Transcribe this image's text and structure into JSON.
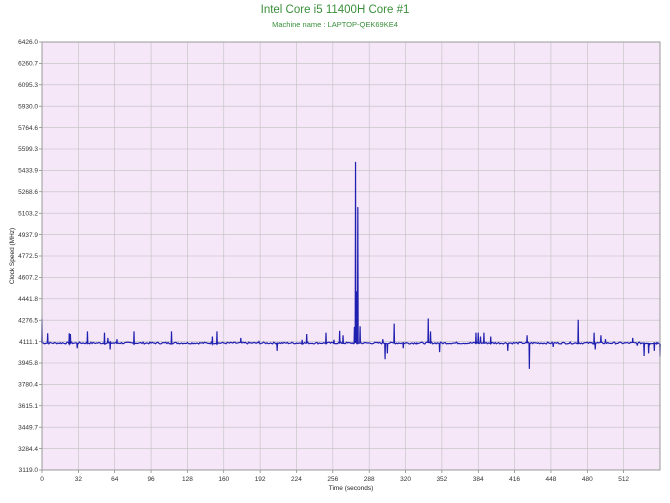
{
  "chart_data": {
    "type": "line",
    "title": "Intel Core i5 11400H Core #1",
    "subtitle": "Machine name : LAPTOP-QEK69KE4",
    "xlabel": "Time (seconds)",
    "ylabel": "Clock Speed (MHz)",
    "xlim": [
      0,
      544
    ],
    "ylim": [
      3119.0,
      6426.0
    ],
    "x_ticks": [
      0,
      32,
      64,
      96,
      128,
      160,
      192,
      224,
      256,
      288,
      320,
      352,
      384,
      416,
      448,
      480,
      512
    ],
    "y_ticks": [
      3119.0,
      3284.4,
      3449.7,
      3615.1,
      3780.4,
      3945.8,
      4111.1,
      4276.5,
      4441.8,
      4607.2,
      4772.5,
      4937.9,
      5103.2,
      5268.6,
      5433.9,
      5599.3,
      5764.6,
      5930.0,
      6095.3,
      6260.7,
      6426.0
    ],
    "grid": true,
    "plot_background": "#f5e6f8",
    "grid_color": "#c0c0c0",
    "line_color": "#1f1fb0",
    "series": [
      {
        "baseline": 4100,
        "spikes": [
          [
            0,
            4290
          ],
          [
            5,
            4175
          ],
          [
            24,
            4175
          ],
          [
            25,
            4170
          ],
          [
            31,
            4060
          ],
          [
            40,
            4190
          ],
          [
            55,
            4180
          ],
          [
            58,
            4140
          ],
          [
            60,
            4050
          ],
          [
            66,
            4130
          ],
          [
            81,
            4190
          ],
          [
            114,
            4190
          ],
          [
            150,
            4150
          ],
          [
            154,
            4190
          ],
          [
            175,
            4140
          ],
          [
            191,
            4110
          ],
          [
            207,
            4040
          ],
          [
            229,
            4125
          ],
          [
            233,
            4170
          ],
          [
            250,
            4180
          ],
          [
            257,
            4125
          ],
          [
            262,
            4195
          ],
          [
            265,
            4160
          ],
          [
            275,
            4225
          ],
          [
            276,
            5500
          ],
          [
            277,
            4500
          ],
          [
            278,
            5150
          ],
          [
            280,
            4230
          ],
          [
            300,
            4130
          ],
          [
            302,
            3975
          ],
          [
            304,
            4020
          ],
          [
            310,
            4250
          ],
          [
            318,
            4060
          ],
          [
            330,
            4100
          ],
          [
            340,
            4290
          ],
          [
            342,
            4190
          ],
          [
            350,
            4030
          ],
          [
            382,
            4180
          ],
          [
            384,
            4180
          ],
          [
            386,
            4150
          ],
          [
            389,
            4180
          ],
          [
            395,
            4150
          ],
          [
            410,
            4040
          ],
          [
            427,
            4160
          ],
          [
            429,
            3900
          ],
          [
            450,
            4070
          ],
          [
            472,
            4280
          ],
          [
            486,
            4180
          ],
          [
            487,
            4050
          ],
          [
            492,
            4160
          ],
          [
            496,
            4130
          ],
          [
            520,
            4140
          ],
          [
            524,
            4080
          ],
          [
            530,
            4000
          ],
          [
            534,
            4020
          ],
          [
            535,
            4090
          ],
          [
            539,
            4040
          ],
          [
            541,
            4100
          ],
          [
            544,
            3995
          ]
        ]
      }
    ]
  }
}
